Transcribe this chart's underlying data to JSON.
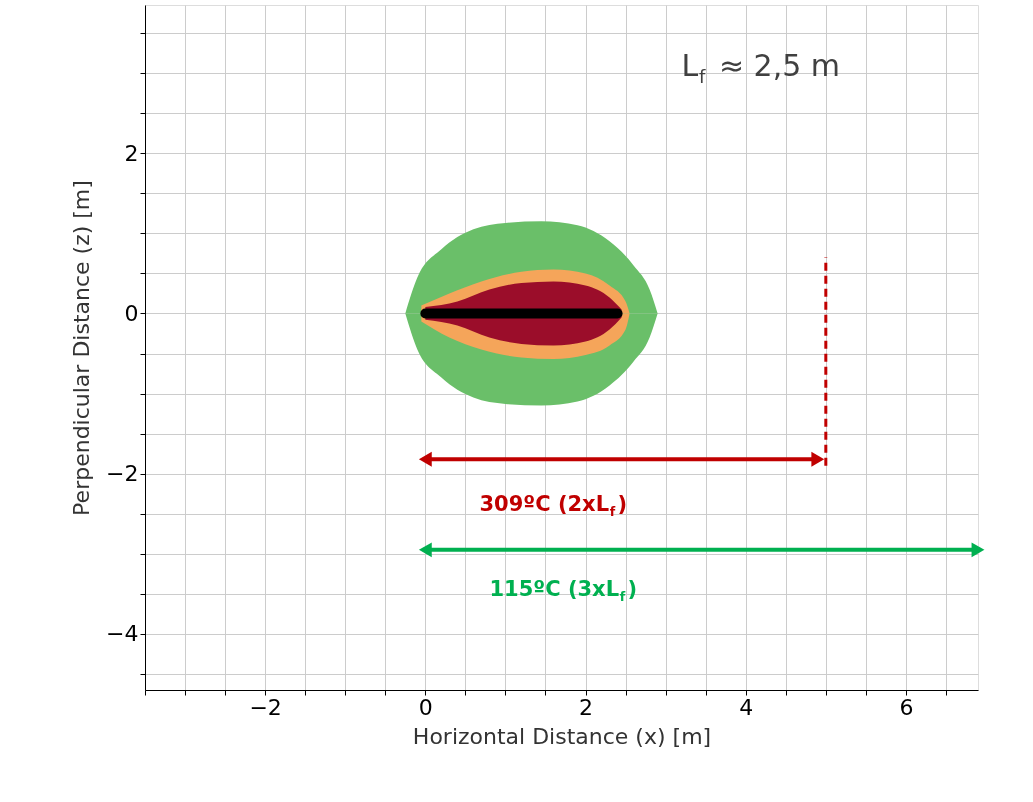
{
  "chart_data": {
    "type": "area",
    "xlabel": "Horizontal Distance (x) [m]",
    "ylabel": "Perpendicular Distance (z) [m]",
    "xlim": [
      -3.5,
      6.9
    ],
    "ylim": [
      -4.7,
      3.85
    ],
    "grid": true,
    "xticks": [
      {
        "value": -3.5,
        "label": null
      },
      {
        "value": -3,
        "label": null
      },
      {
        "value": -2.5,
        "label": null
      },
      {
        "value": -2,
        "label": "−2"
      },
      {
        "value": -1.5,
        "label": null
      },
      {
        "value": -1,
        "label": null
      },
      {
        "value": -0.5,
        "label": null
      },
      0,
      {
        "value": 0.5,
        "label": null
      },
      {
        "value": 1,
        "label": null
      },
      {
        "value": 1.5,
        "label": null
      },
      2,
      {
        "value": 2.5,
        "label": null
      },
      {
        "value": 3,
        "label": null
      },
      {
        "value": 3.5,
        "label": null
      },
      4,
      {
        "value": 4.5,
        "label": null
      },
      {
        "value": 5,
        "label": null
      },
      {
        "value": 5.5,
        "label": null
      },
      6,
      {
        "value": 6.5,
        "label": null
      }
    ],
    "yticks": [
      {
        "value": -4.5,
        "label": null
      },
      {
        "value": -4,
        "label": "−4"
      },
      {
        "value": -3.5,
        "label": null
      },
      {
        "value": -3,
        "label": null
      },
      {
        "value": -2.5,
        "label": null
      },
      {
        "value": -2,
        "label": "−2"
      },
      {
        "value": -1.5,
        "label": null
      },
      {
        "value": -1,
        "label": null
      },
      {
        "value": -0.5,
        "label": null
      },
      0,
      {
        "value": 0.5,
        "label": null
      },
      {
        "value": 1,
        "label": null
      },
      {
        "value": 1.5,
        "label": null
      },
      2,
      {
        "value": 2.5,
        "label": null
      },
      {
        "value": 3,
        "label": null
      },
      {
        "value": 3.5,
        "label": null
      }
    ],
    "series": [
      {
        "color": "#6abf69",
        "x": [
          -0.25,
          -0.1,
          0.2,
          0.6,
          1.0,
          1.45,
          1.9,
          2.3,
          2.6,
          2.8,
          2.9
        ],
        "values": [
          0,
          0.45,
          0.8,
          1.05,
          1.13,
          1.15,
          1.1,
          0.9,
          0.6,
          0.3,
          0
        ]
      },
      {
        "color": "#6abf69",
        "x": [
          -0.25,
          -0.1,
          0.2,
          0.6,
          1.0,
          1.45,
          1.9,
          2.3,
          2.6,
          2.8,
          2.9
        ],
        "values": [
          0,
          -0.45,
          -0.8,
          -1.05,
          -1.13,
          -1.15,
          -1.1,
          -0.9,
          -0.6,
          -0.3,
          0
        ]
      },
      {
        "color": "#f5a55a",
        "x": [
          -0.05,
          0.3,
          0.7,
          1.2,
          1.6,
          2.0,
          2.3,
          2.5,
          2.55
        ],
        "values": [
          0.1,
          0.25,
          0.4,
          0.52,
          0.55,
          0.5,
          0.35,
          0.15,
          0
        ]
      },
      {
        "color": "#f5a55a",
        "x": [
          -0.05,
          0.3,
          0.7,
          1.2,
          1.6,
          2.0,
          2.3,
          2.5,
          2.55
        ],
        "values": [
          -0.1,
          -0.3,
          -0.45,
          -0.55,
          -0.57,
          -0.52,
          -0.4,
          -0.2,
          0
        ]
      },
      {
        "color": "#9b0d2a",
        "x": [
          0,
          0.4,
          0.8,
          1.2,
          1.6,
          2.0,
          2.3,
          2.45
        ],
        "values": [
          0.08,
          0.15,
          0.3,
          0.38,
          0.4,
          0.35,
          0.2,
          0.05
        ]
      },
      {
        "color": "#9b0d2a",
        "x": [
          0,
          0.4,
          0.8,
          1.2,
          1.6,
          2.0,
          2.3,
          2.45
        ],
        "values": [
          -0.08,
          -0.15,
          -0.3,
          -0.38,
          -0.4,
          -0.35,
          -0.2,
          -0.05
        ]
      },
      {
        "type": "line",
        "color": "#000000",
        "x": [
          0,
          2.4
        ],
        "values": [
          0,
          0
        ]
      },
      {
        "type": "line",
        "color": "#c00000",
        "line_style": "dashed",
        "x": [
          5,
          5
        ],
        "values": [
          -1.9,
          0.7
        ]
      },
      {
        "type": "line",
        "color": "#c00000",
        "marker": "triangle",
        "x": [
          0,
          4.9
        ],
        "values": [
          -1.82,
          -1.82
        ]
      },
      {
        "type": "line",
        "color": "#00b050",
        "marker": "triangle",
        "x": [
          0,
          6.9
        ],
        "values": [
          -2.95,
          -2.95
        ]
      }
    ],
    "annotations": [
      "L$_{f}$ ≈ 2,5 m",
      "309ºC (2xL$_{f}$)",
      "115ºC (3xL$_{f}$)"
    ]
  }
}
